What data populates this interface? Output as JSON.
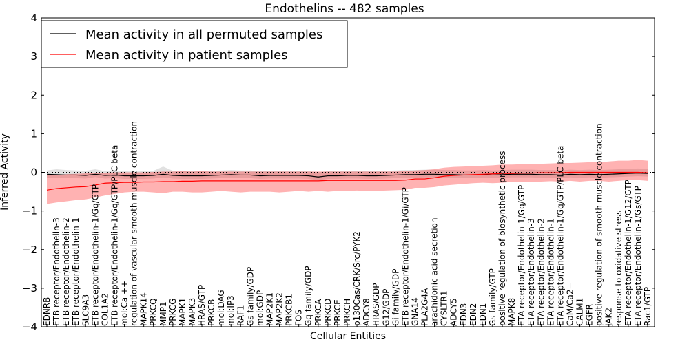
{
  "chart_data": {
    "type": "line",
    "title": "Endothelins -- 482 samples",
    "xlabel": "Cellular Entities",
    "ylabel": "Inferred Activity",
    "ylim": [
      -4,
      4
    ],
    "yticks": [
      -4,
      -3,
      -2,
      -1,
      0,
      1,
      2,
      3,
      4
    ],
    "ytick_labels": [
      "−4",
      "−3",
      "−2",
      "−1",
      "0",
      "1",
      "2",
      "3",
      "4"
    ],
    "legend": {
      "position": "top-left",
      "entries": [
        {
          "label": "Mean activity in all permuted samples",
          "color": "#000000"
        },
        {
          "label": "Mean activity in patient samples",
          "color": "#ff0000"
        }
      ]
    },
    "categories": [
      "EDNRB",
      "ETB receptor/Endothelin-3",
      "ETB receptor/Endothelin-2",
      "ETB receptor/Endothelin-1",
      "SLC9A3",
      "ETB receptor/Endothelin-1/Gq/GTP",
      "COL1A2",
      "ETB receptor/Endothelin-1/Gq/GTP/PLC beta",
      "mol:Ca ++",
      "regulation of vascular smooth muscle contraction",
      "MAPK14",
      "PRKCQ",
      "MMP1",
      "PRKCG",
      "MAPK1",
      "MAPK3",
      "HRAS/GTP",
      "PRKCB",
      "mol:DAG",
      "mol:IP3",
      "RAF1",
      "Gs family/GDP",
      "mol:GDP",
      "MAP2K1",
      "MAP2K2",
      "PRKCB1",
      "FOS",
      "Gq family/GDP",
      "PRKCA",
      "PRKCD",
      "PRKCE",
      "PRKCH",
      "p130Cas/CRK/Src/PYK2",
      "ADCY8",
      "HRAS/GDP",
      "G12/GDP",
      "Gi family/GDP",
      "ETB receptor/Endothelin-1/Gi/GTP",
      "GNA14",
      "PLA2G4A",
      "arachidonic acid secretion",
      "CYSLTR1",
      "ADCY5",
      "EDN3",
      "EDN2",
      "EDN1",
      "Gs family/GTP",
      "positive regulation of biosynthetic process",
      "MAPK8",
      "ETA receptor/Endothelin-1/Gq/GTP",
      "ETA receptor/Endothelin-3",
      "ETA receptor/Endothelin-2",
      "ETA receptor/Endothelin-1",
      "ETA receptor/Endothelin-1/Gq/GTP/PLC beta",
      "CaM/Ca2+",
      "CALM1",
      "EGFR",
      "positive regulation of smooth muscle contraction",
      "JAK2",
      "response to oxidative stress",
      "ETA receptor/Endothelin-1/G12/GTP",
      "ETA receptor/Endothelin-1/Gs/GTP",
      "Rac1/GTP"
    ],
    "series": [
      {
        "name": "Mean activity in all permuted samples",
        "color": "#000000",
        "values": [
          -0.05,
          -0.06,
          -0.07,
          -0.07,
          -0.08,
          -0.05,
          -0.08,
          -0.07,
          -0.09,
          -0.09,
          -0.09,
          -0.08,
          -0.05,
          -0.08,
          -0.09,
          -0.09,
          -0.09,
          -0.08,
          -0.07,
          -0.06,
          -0.07,
          -0.07,
          -0.09,
          -0.08,
          -0.08,
          -0.08,
          -0.08,
          -0.09,
          -0.12,
          -0.09,
          -0.09,
          -0.08,
          -0.08,
          -0.09,
          -0.09,
          -0.08,
          -0.07,
          -0.06,
          -0.06,
          -0.05,
          -0.05,
          -0.06,
          -0.06,
          -0.07,
          -0.07,
          -0.06,
          -0.07,
          -0.06,
          -0.05,
          -0.05,
          -0.05,
          -0.06,
          -0.06,
          -0.07,
          -0.05,
          -0.06,
          -0.05,
          -0.06,
          -0.05,
          -0.04,
          -0.03,
          -0.02,
          -0.03
        ],
        "band_low": [
          -0.15,
          -0.14,
          -0.15,
          -0.15,
          -0.16,
          -0.12,
          -0.16,
          -0.15,
          -0.17,
          -0.17,
          -0.17,
          -0.16,
          -0.13,
          -0.16,
          -0.17,
          -0.17,
          -0.17,
          -0.16,
          -0.15,
          -0.14,
          -0.15,
          -0.15,
          -0.17,
          -0.16,
          -0.16,
          -0.16,
          -0.16,
          -0.17,
          -0.2,
          -0.17,
          -0.17,
          -0.16,
          -0.16,
          -0.17,
          -0.17,
          -0.16,
          -0.15,
          -0.14,
          -0.14,
          -0.13,
          -0.13,
          -0.14,
          -0.14,
          -0.15,
          -0.15,
          -0.14,
          -0.15,
          -0.14,
          -0.13,
          -0.13,
          -0.13,
          -0.14,
          -0.14,
          -0.15,
          -0.13,
          -0.14,
          -0.13,
          -0.14,
          -0.13,
          -0.12,
          -0.11,
          -0.1,
          -0.11
        ],
        "band_high": [
          0.05,
          0.08,
          0.06,
          0.05,
          0.04,
          0.08,
          0.03,
          0.05,
          0.03,
          0.02,
          0.03,
          0.04,
          0.15,
          0.04,
          0.03,
          0.03,
          0.03,
          0.04,
          0.05,
          0.06,
          0.05,
          0.05,
          0.03,
          0.04,
          0.04,
          0.04,
          0.04,
          0.03,
          0.0,
          0.03,
          0.03,
          0.04,
          0.04,
          0.03,
          0.03,
          0.04,
          0.05,
          0.06,
          0.06,
          0.07,
          0.07,
          0.06,
          0.06,
          0.05,
          0.05,
          0.06,
          0.05,
          0.06,
          0.07,
          0.07,
          0.07,
          0.06,
          0.06,
          0.05,
          0.07,
          0.06,
          0.07,
          0.06,
          0.07,
          0.08,
          0.09,
          0.1,
          0.09
        ]
      },
      {
        "name": "Mean activity in patient samples",
        "color": "#ff0000",
        "values": [
          -0.46,
          -0.42,
          -0.4,
          -0.38,
          -0.37,
          -0.33,
          -0.28,
          -0.27,
          -0.26,
          -0.26,
          -0.25,
          -0.25,
          -0.24,
          -0.24,
          -0.23,
          -0.23,
          -0.22,
          -0.22,
          -0.22,
          -0.22,
          -0.22,
          -0.22,
          -0.22,
          -0.22,
          -0.22,
          -0.22,
          -0.22,
          -0.22,
          -0.22,
          -0.21,
          -0.21,
          -0.21,
          -0.21,
          -0.21,
          -0.21,
          -0.21,
          -0.21,
          -0.2,
          -0.17,
          -0.17,
          -0.14,
          -0.1,
          -0.08,
          -0.07,
          -0.06,
          -0.05,
          -0.04,
          -0.03,
          -0.03,
          -0.02,
          -0.02,
          -0.01,
          -0.01,
          -0.01,
          0.0,
          0.0,
          0.0,
          0.0,
          0.0,
          0.0,
          0.0,
          0.0,
          -0.01
        ],
        "band_low": [
          -0.82,
          -0.78,
          -0.75,
          -0.72,
          -0.7,
          -0.65,
          -0.6,
          -0.56,
          -0.52,
          -0.5,
          -0.5,
          -0.52,
          -0.54,
          -0.5,
          -0.5,
          -0.52,
          -0.52,
          -0.5,
          -0.48,
          -0.5,
          -0.52,
          -0.5,
          -0.5,
          -0.5,
          -0.52,
          -0.5,
          -0.48,
          -0.5,
          -0.48,
          -0.5,
          -0.48,
          -0.48,
          -0.47,
          -0.48,
          -0.48,
          -0.47,
          -0.46,
          -0.45,
          -0.4,
          -0.4,
          -0.38,
          -0.34,
          -0.32,
          -0.3,
          -0.28,
          -0.27,
          -0.28,
          -0.27,
          -0.25,
          -0.24,
          -0.25,
          -0.24,
          -0.23,
          -0.24,
          -0.22,
          -0.24,
          -0.22,
          -0.22,
          -0.24,
          -0.22,
          -0.2,
          -0.2,
          -0.22
        ],
        "band_high": [
          -0.08,
          -0.06,
          -0.05,
          -0.04,
          -0.03,
          -0.02,
          -0.01,
          0.0,
          0.0,
          0.0,
          0.0,
          0.01,
          0.02,
          0.02,
          0.03,
          0.02,
          0.03,
          0.02,
          0.02,
          0.02,
          0.02,
          0.02,
          0.02,
          0.02,
          0.02,
          0.02,
          0.02,
          0.02,
          0.02,
          0.02,
          0.02,
          0.02,
          0.02,
          0.02,
          0.02,
          0.02,
          0.02,
          0.03,
          0.05,
          0.06,
          0.08,
          0.12,
          0.14,
          0.15,
          0.16,
          0.17,
          0.18,
          0.2,
          0.2,
          0.21,
          0.22,
          0.22,
          0.23,
          0.24,
          0.24,
          0.25,
          0.26,
          0.26,
          0.28,
          0.3,
          0.3,
          0.32,
          0.3
        ]
      }
    ]
  }
}
